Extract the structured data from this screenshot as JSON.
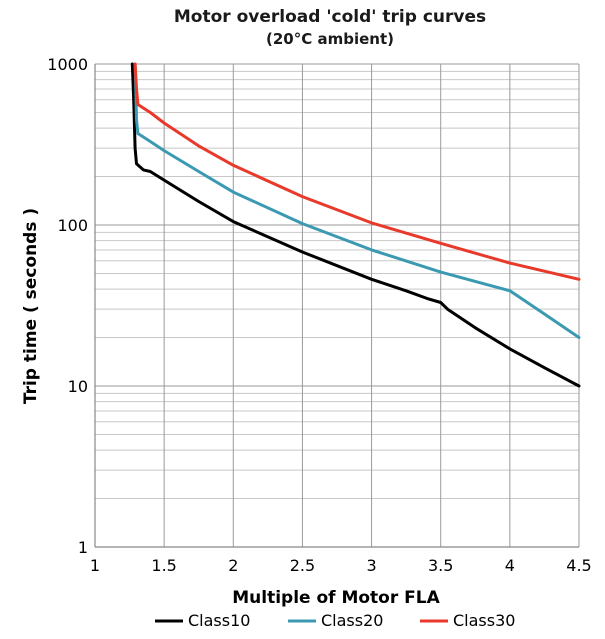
{
  "chart_data": {
    "type": "line",
    "title": "Motor overload 'cold' trip curves",
    "subtitle": "(20°C ambient)",
    "xlabel": "Multiple of Motor FLA",
    "ylabel": "Trip time ( seconds )",
    "xlim": [
      1,
      4.5
    ],
    "ylim": [
      1,
      1000
    ],
    "yscale": "log",
    "grid": true,
    "legend_position": "bottom",
    "x_ticks": [
      "1",
      "1.5",
      "2",
      "2.5",
      "3",
      "3.5",
      "4",
      "4.5"
    ],
    "y_ticks": [
      "1",
      "10",
      "100",
      "1000"
    ],
    "series": [
      {
        "name": "Class10",
        "color": "#000000",
        "points": [
          [
            1.27,
            1000
          ],
          [
            1.28,
            600
          ],
          [
            1.29,
            300
          ],
          [
            1.3,
            240
          ],
          [
            1.35,
            220
          ],
          [
            1.4,
            215
          ],
          [
            1.5,
            190
          ],
          [
            1.75,
            140
          ],
          [
            2,
            105
          ],
          [
            2.5,
            68
          ],
          [
            3,
            46
          ],
          [
            3.25,
            39
          ],
          [
            3.4,
            35
          ],
          [
            3.5,
            33
          ],
          [
            3.55,
            30
          ],
          [
            3.75,
            23
          ],
          [
            4,
            17
          ],
          [
            4.25,
            13
          ],
          [
            4.5,
            10
          ]
        ]
      },
      {
        "name": "Class20",
        "color": "#3b9ab2",
        "points": [
          [
            1.29,
            1000
          ],
          [
            1.295,
            700
          ],
          [
            1.3,
            450
          ],
          [
            1.31,
            370
          ],
          [
            1.4,
            330
          ],
          [
            1.5,
            290
          ],
          [
            1.75,
            215
          ],
          [
            2,
            160
          ],
          [
            2.5,
            102
          ],
          [
            3,
            70
          ],
          [
            3.5,
            51
          ],
          [
            4,
            39
          ],
          [
            4.25,
            28
          ],
          [
            4.5,
            20
          ]
        ]
      },
      {
        "name": "Class30",
        "color": "#e8392b",
        "points": [
          [
            1.29,
            1000
          ],
          [
            1.3,
            700
          ],
          [
            1.31,
            560
          ],
          [
            1.4,
            500
          ],
          [
            1.5,
            430
          ],
          [
            1.75,
            310
          ],
          [
            2,
            235
          ],
          [
            2.5,
            150
          ],
          [
            3,
            103
          ],
          [
            3.5,
            77
          ],
          [
            4,
            58
          ],
          [
            4.5,
            46
          ]
        ]
      }
    ]
  }
}
